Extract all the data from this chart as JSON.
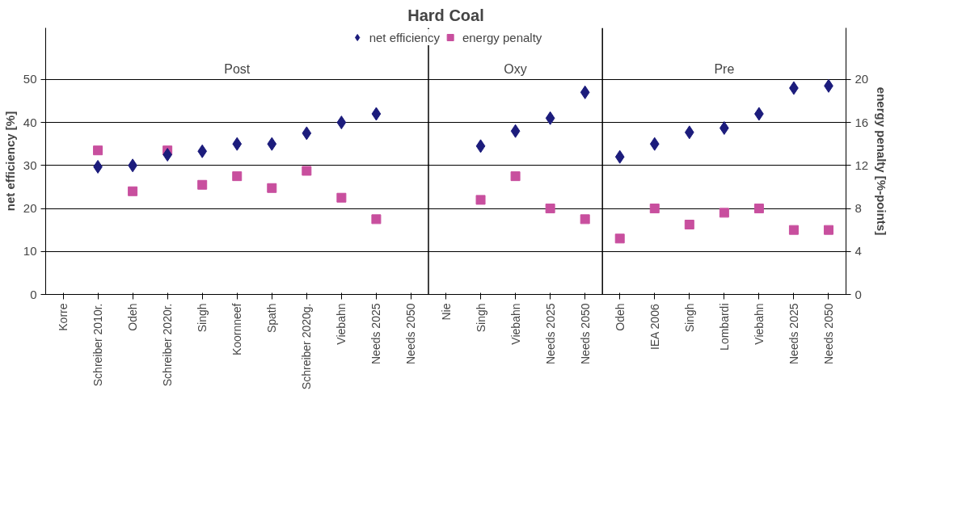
{
  "chart_data": {
    "type": "scatter",
    "title": "Hard Coal",
    "ylabel": "net efficiency [%]",
    "y2label": "energy penalty [%-points]",
    "categories": [
      "Korre",
      "Schreiber 2010r.",
      "Odeh",
      "Schreiber 2020r.",
      "Singh",
      "Koornneef",
      "Spath",
      "Schreiber 2020g.",
      "Viebahn",
      "Needs 2025",
      "Needs 2050",
      "Nie",
      "Singh",
      "Viebahn",
      "Needs 2025",
      "Needs 2050",
      "Odeh",
      "IEA 2006",
      "Singh",
      "Lombardi",
      "Viebahn",
      "Needs 2025",
      "Needs 2050"
    ],
    "ylim": [
      0,
      62
    ],
    "yticks": [
      0,
      10,
      20,
      30,
      40,
      50
    ],
    "y2lim": [
      0,
      24.8
    ],
    "y2ticks": [
      0,
      4,
      8,
      12,
      16,
      20
    ],
    "series": [
      {
        "name": "net efficiency",
        "color": "#1c1c7c",
        "marker": "diamond",
        "values": [
          null,
          29.7,
          30,
          32.5,
          33.3,
          35,
          35,
          37.5,
          40,
          42,
          null,
          null,
          34.5,
          38,
          41,
          47,
          32,
          35,
          37.7,
          38.7,
          42,
          48,
          48.5
        ]
      },
      {
        "name": "energy penalty",
        "color": "#c84f9e",
        "marker": "square",
        "axis": "y2",
        "values": [
          null,
          13.4,
          9.6,
          13.4,
          10.2,
          11,
          9.9,
          11.5,
          9,
          7,
          null,
          null,
          8.8,
          11,
          8,
          7,
          5.2,
          8,
          6.5,
          7.6,
          8,
          6,
          6
        ]
      }
    ],
    "annotations": [
      "Post",
      "Oxy",
      "Pre"
    ],
    "grid": "y",
    "legend": "top"
  }
}
